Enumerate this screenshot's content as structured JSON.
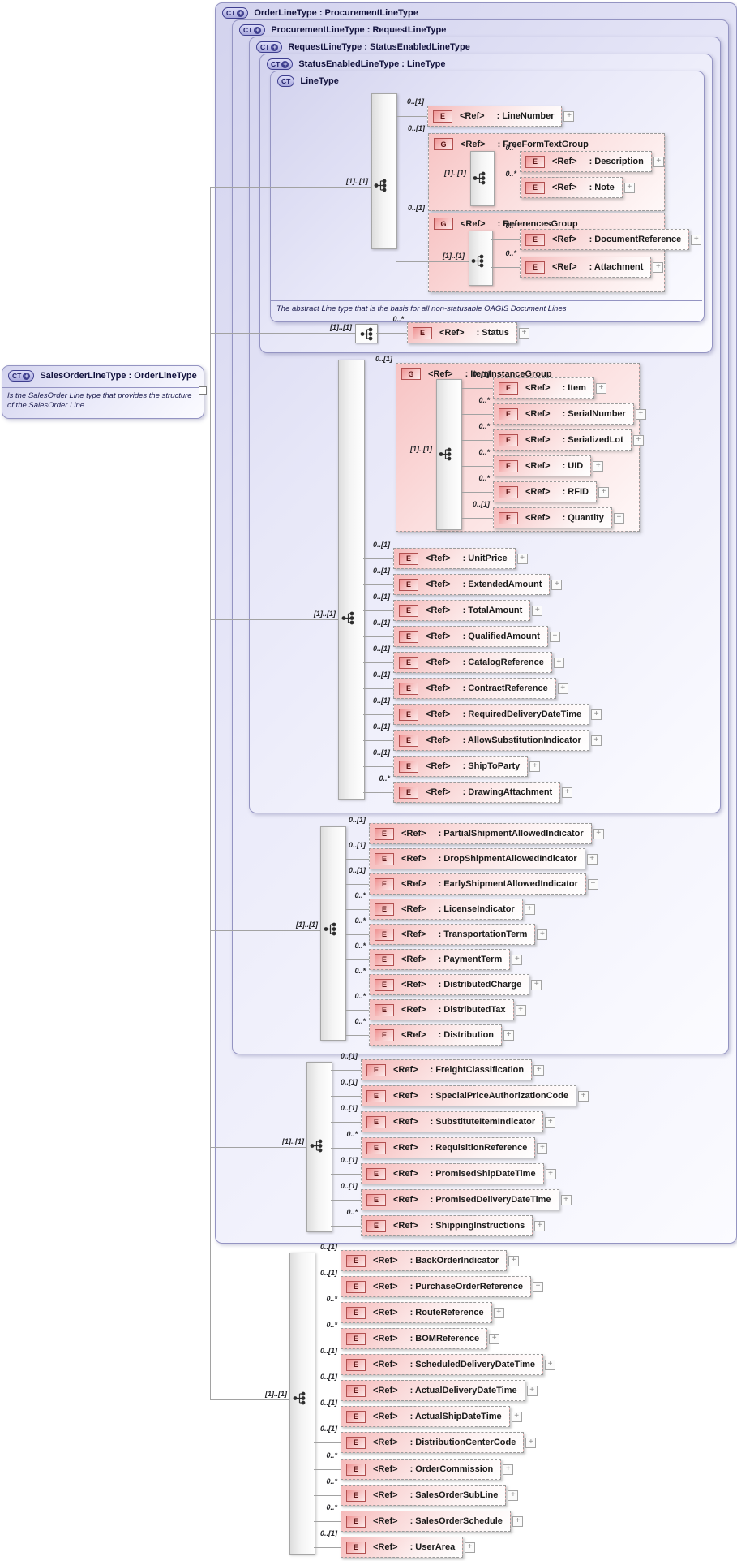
{
  "diagram": {
    "ref_label": "<Ref>",
    "root_box": {
      "badge": "CT+",
      "title": "SalesOrderLineType : OrderLineType",
      "description": "Is the SalesOrder Line type that provides the structure of the SalesOrder Line."
    },
    "containers": [
      {
        "badge": "CT+",
        "title": "OrderLineType : ProcurementLineType"
      },
      {
        "badge": "CT+",
        "title": "ProcurementLineType : RequestLineType"
      },
      {
        "badge": "CT+",
        "title": "RequestLineType : StatusEnabledLineType"
      },
      {
        "badge": "CT+",
        "title": "StatusEnabledLineType : LineType"
      },
      {
        "badge": "CT",
        "title": "LineType"
      }
    ],
    "annotation": "The abstract Line type that is the basis for all non-statusable OAGIS Document Lines",
    "groups": [
      {
        "owner": "LineType",
        "card": "[1]..[1]",
        "rows": [
          {
            "kind": "E",
            "card": "0..[1]",
            "name": "LineNumber"
          },
          {
            "kind": "G",
            "card": "0..[1]",
            "name": "FreeFormTextGroup",
            "inner_card": "[1]..[1]",
            "children": [
              {
                "kind": "E",
                "card": "0..*",
                "name": "Description"
              },
              {
                "kind": "E",
                "card": "0..*",
                "name": "Note"
              }
            ]
          },
          {
            "kind": "G",
            "card": "0..[1]",
            "name": "ReferencesGroup",
            "inner_card": "[1]..[1]",
            "children": [
              {
                "kind": "E",
                "card": "0..*",
                "name": "DocumentReference"
              },
              {
                "kind": "E",
                "card": "0..*",
                "name": "Attachment"
              }
            ]
          }
        ]
      },
      {
        "owner": "StatusEnabledLineType",
        "card": "[1]..[1]",
        "rows": [
          {
            "kind": "E",
            "card": "0..*",
            "name": "Status"
          }
        ]
      },
      {
        "owner": "RequestLineType",
        "card": "[1]..[1]",
        "rows": [
          {
            "kind": "G",
            "card": "0..[1]",
            "name": "ItemInstanceGroup",
            "inner_card": "[1]..[1]",
            "children": [
              {
                "kind": "E",
                "card": "0..[1]",
                "name": "Item"
              },
              {
                "kind": "E",
                "card": "0..*",
                "name": "SerialNumber"
              },
              {
                "kind": "E",
                "card": "0..*",
                "name": "SerializedLot"
              },
              {
                "kind": "E",
                "card": "0..*",
                "name": "UID"
              },
              {
                "kind": "E",
                "card": "0..*",
                "name": "RFID"
              },
              {
                "kind": "E",
                "card": "0..[1]",
                "name": "Quantity"
              }
            ]
          },
          {
            "kind": "E",
            "card": "0..[1]",
            "name": "UnitPrice"
          },
          {
            "kind": "E",
            "card": "0..[1]",
            "name": "ExtendedAmount"
          },
          {
            "kind": "E",
            "card": "0..[1]",
            "name": "TotalAmount"
          },
          {
            "kind": "E",
            "card": "0..[1]",
            "name": "QualifiedAmount"
          },
          {
            "kind": "E",
            "card": "0..[1]",
            "name": "CatalogReference"
          },
          {
            "kind": "E",
            "card": "0..[1]",
            "name": "ContractReference"
          },
          {
            "kind": "E",
            "card": "0..[1]",
            "name": "RequiredDeliveryDateTime"
          },
          {
            "kind": "E",
            "card": "0..[1]",
            "name": "AllowSubstitutionIndicator"
          },
          {
            "kind": "E",
            "card": "0..[1]",
            "name": "ShipToParty"
          },
          {
            "kind": "E",
            "card": "0..*",
            "name": "DrawingAttachment"
          }
        ]
      },
      {
        "owner": "ProcurementLineType",
        "card": "[1]..[1]",
        "rows": [
          {
            "kind": "E",
            "card": "0..[1]",
            "name": "PartialShipmentAllowedIndicator"
          },
          {
            "kind": "E",
            "card": "0..[1]",
            "name": "DropShipmentAllowedIndicator"
          },
          {
            "kind": "E",
            "card": "0..[1]",
            "name": "EarlyShipmentAllowedIndicator"
          },
          {
            "kind": "E",
            "card": "0..*",
            "name": "LicenseIndicator"
          },
          {
            "kind": "E",
            "card": "0..*",
            "name": "TransportationTerm"
          },
          {
            "kind": "E",
            "card": "0..*",
            "name": "PaymentTerm"
          },
          {
            "kind": "E",
            "card": "0..*",
            "name": "DistributedCharge"
          },
          {
            "kind": "E",
            "card": "0..*",
            "name": "DistributedTax"
          },
          {
            "kind": "E",
            "card": "0..*",
            "name": "Distribution"
          }
        ]
      },
      {
        "owner": "OrderLineType",
        "card": "[1]..[1]",
        "rows": [
          {
            "kind": "E",
            "card": "0..[1]",
            "name": "FreightClassification"
          },
          {
            "kind": "E",
            "card": "0..[1]",
            "name": "SpecialPriceAuthorizationCode"
          },
          {
            "kind": "E",
            "card": "0..[1]",
            "name": "SubstituteItemIndicator"
          },
          {
            "kind": "E",
            "card": "0..*",
            "name": "RequisitionReference"
          },
          {
            "kind": "E",
            "card": "0..[1]",
            "name": "PromisedShipDateTime"
          },
          {
            "kind": "E",
            "card": "0..[1]",
            "name": "PromisedDeliveryDateTime"
          },
          {
            "kind": "E",
            "card": "0..*",
            "name": "ShippingInstructions"
          }
        ]
      },
      {
        "owner": "SalesOrderLineType",
        "card": "[1]..[1]",
        "rows": [
          {
            "kind": "E",
            "card": "0..[1]",
            "name": "BackOrderIndicator"
          },
          {
            "kind": "E",
            "card": "0..[1]",
            "name": "PurchaseOrderReference"
          },
          {
            "kind": "E",
            "card": "0..*",
            "name": "RouteReference"
          },
          {
            "kind": "E",
            "card": "0..*",
            "name": "BOMReference"
          },
          {
            "kind": "E",
            "card": "0..[1]",
            "name": "ScheduledDeliveryDateTime"
          },
          {
            "kind": "E",
            "card": "0..[1]",
            "name": "ActualDeliveryDateTime"
          },
          {
            "kind": "E",
            "card": "0..[1]",
            "name": "ActualShipDateTime"
          },
          {
            "kind": "E",
            "card": "0..[1]",
            "name": "DistributionCenterCode"
          },
          {
            "kind": "E",
            "card": "0..*",
            "name": "OrderCommission"
          },
          {
            "kind": "E",
            "card": "0..*",
            "name": "SalesOrderSubLine"
          },
          {
            "kind": "E",
            "card": "0..*",
            "name": "SalesOrderSchedule"
          },
          {
            "kind": "E",
            "card": "0..[1]",
            "name": "UserArea"
          }
        ]
      }
    ]
  }
}
